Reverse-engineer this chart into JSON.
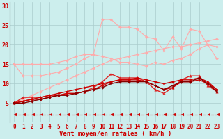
{
  "x": [
    0,
    1,
    2,
    3,
    4,
    5,
    6,
    7,
    8,
    9,
    10,
    11,
    12,
    13,
    14,
    15,
    16,
    17,
    18,
    19,
    20,
    21,
    22,
    23
  ],
  "background_color": "#cceeed",
  "grid_color": "#aacccc",
  "xlabel": "Vent moyen/en rafales ( km/h )",
  "xlabel_color": "#cc0000",
  "xlabel_fontsize": 6.5,
  "tick_color": "#cc0000",
  "tick_fontsize": 5.5,
  "ylim": [
    0,
    31
  ],
  "yticks": [
    5,
    10,
    15,
    20,
    25,
    30
  ],
  "lines": [
    {
      "y": [
        5.0,
        6.0,
        7.0,
        8.0,
        9.0,
        10.0,
        11.0,
        12.0,
        13.0,
        14.0,
        15.0,
        16.0,
        16.5,
        17.0,
        17.5,
        18.0,
        18.5,
        19.0,
        19.5,
        19.5,
        20.0,
        20.5,
        21.0,
        21.5
      ],
      "color": "#ffaaaa",
      "marker": "D",
      "markersize": 2.0,
      "linewidth": 0.8
    },
    {
      "y": [
        15.0,
        15.0,
        15.0,
        15.0,
        15.0,
        15.5,
        16.0,
        17.0,
        17.5,
        17.5,
        17.0,
        16.5,
        15.5,
        15.5,
        15.0,
        14.5,
        15.5,
        15.0,
        16.0,
        16.5,
        17.5,
        19.0,
        20.0,
        19.5
      ],
      "color": "#ffaaaa",
      "marker": "D",
      "markersize": 2.0,
      "linewidth": 0.8
    },
    {
      "y": [
        15.0,
        12.0,
        12.0,
        12.0,
        12.5,
        13.0,
        14.0,
        15.0,
        16.5,
        17.5,
        26.5,
        26.5,
        24.5,
        24.5,
        24.0,
        22.0,
        21.5,
        18.5,
        22.0,
        19.0,
        24.0,
        23.5,
        20.0,
        16.5
      ],
      "color": "#ffaaaa",
      "marker": "D",
      "markersize": 2.0,
      "linewidth": 0.8
    },
    {
      "y": [
        5.0,
        6.5,
        6.5,
        6.5,
        7.0,
        7.0,
        7.5,
        7.5,
        8.0,
        9.0,
        10.5,
        12.5,
        11.5,
        11.5,
        11.5,
        10.5,
        8.5,
        7.5,
        9.0,
        11.0,
        12.0,
        12.0,
        9.5,
        8.0
      ],
      "color": "#dd2222",
      "marker": "^",
      "markersize": 2.5,
      "linewidth": 1.0
    },
    {
      "y": [
        5.0,
        5.5,
        6.0,
        6.5,
        7.0,
        7.5,
        8.0,
        8.5,
        9.0,
        9.5,
        10.0,
        10.5,
        11.0,
        11.0,
        11.5,
        11.0,
        10.5,
        10.0,
        10.5,
        11.0,
        11.0,
        11.5,
        10.5,
        8.5
      ],
      "color": "#cc0000",
      "marker": "D",
      "markersize": 1.8,
      "linewidth": 1.0
    },
    {
      "y": [
        5.0,
        5.5,
        6.0,
        6.0,
        6.5,
        7.0,
        7.5,
        7.5,
        8.0,
        8.5,
        9.5,
        10.5,
        11.0,
        11.0,
        11.0,
        10.5,
        9.5,
        8.5,
        9.0,
        10.5,
        10.5,
        11.0,
        10.0,
        8.5
      ],
      "color": "#cc0000",
      "marker": "D",
      "markersize": 1.8,
      "linewidth": 1.0
    },
    {
      "y": [
        5.0,
        5.0,
        5.5,
        6.0,
        6.5,
        7.0,
        7.0,
        7.5,
        8.0,
        8.5,
        9.0,
        10.0,
        10.5,
        10.5,
        10.5,
        10.5,
        9.5,
        8.5,
        9.5,
        10.5,
        10.5,
        11.5,
        10.0,
        8.0
      ],
      "color": "#880000",
      "marker": "D",
      "markersize": 1.8,
      "linewidth": 1.0
    },
    {
      "y": [
        2.0,
        2.0,
        2.0,
        2.0,
        2.0,
        2.0,
        2.0,
        2.0,
        2.0,
        2.0,
        2.0,
        2.0,
        2.0,
        2.0,
        2.0,
        2.0,
        2.0,
        2.0,
        2.0,
        2.0,
        2.0,
        2.0,
        2.0,
        2.0
      ],
      "color": "#cc0000",
      "marker": 4,
      "markersize": 3.5,
      "linewidth": 0.8,
      "linestyle": "--"
    }
  ]
}
